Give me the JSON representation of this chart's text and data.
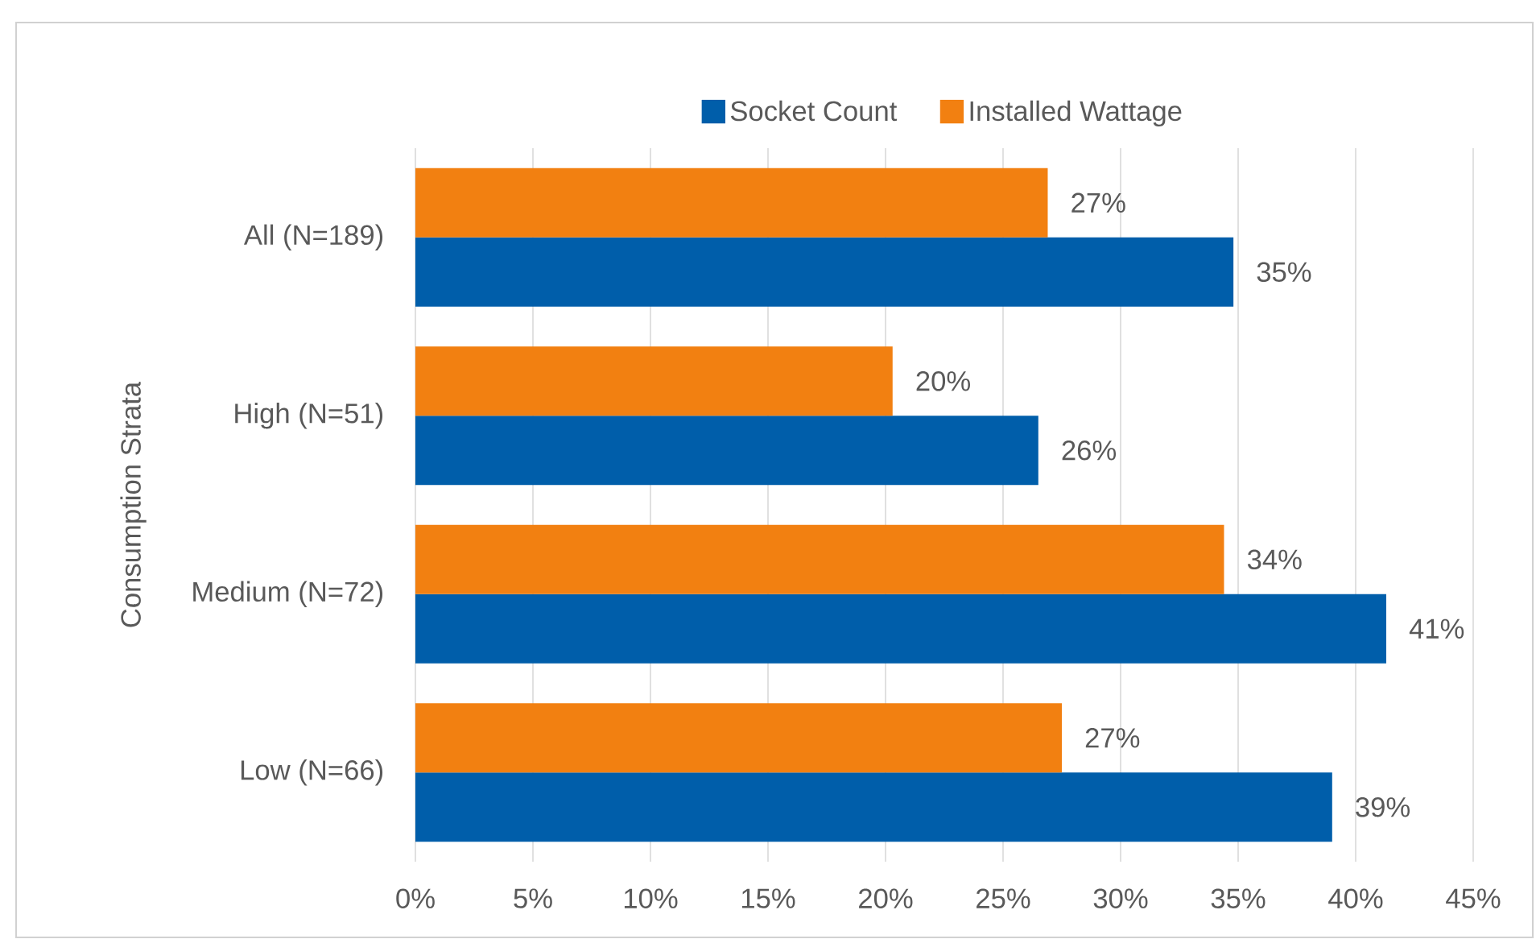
{
  "chart_data": {
    "type": "bar",
    "orientation": "horizontal",
    "ylabel": "Consumption Strata",
    "categories": [
      "All (N=189)",
      "High (N=51)",
      "Medium (N=72)",
      "Low (N=66)"
    ],
    "series": [
      {
        "name": "Socket Count",
        "color": "#005eaa",
        "values": [
          34.8,
          26.5,
          41.3,
          39.0
        ],
        "value_labels": [
          "35%",
          "26%",
          "41%",
          "39%"
        ]
      },
      {
        "name": "Installed Wattage",
        "color": "#f28011",
        "values": [
          26.9,
          20.3,
          34.4,
          27.5
        ],
        "value_labels": [
          "27%",
          "20%",
          "34%",
          "27%"
        ]
      }
    ],
    "xlim": [
      0,
      45
    ],
    "xticks": [
      {
        "value": 0,
        "label": "0%"
      },
      {
        "value": 5,
        "label": "5%"
      },
      {
        "value": 10,
        "label": "10%"
      },
      {
        "value": 15,
        "label": "15%"
      },
      {
        "value": 20,
        "label": "20%"
      },
      {
        "value": 25,
        "label": "25%"
      },
      {
        "value": 30,
        "label": "30%"
      },
      {
        "value": 35,
        "label": "35%"
      },
      {
        "value": 40,
        "label": "40%"
      },
      {
        "value": 45,
        "label": "45%"
      }
    ],
    "grid": "x",
    "legend": "top"
  }
}
